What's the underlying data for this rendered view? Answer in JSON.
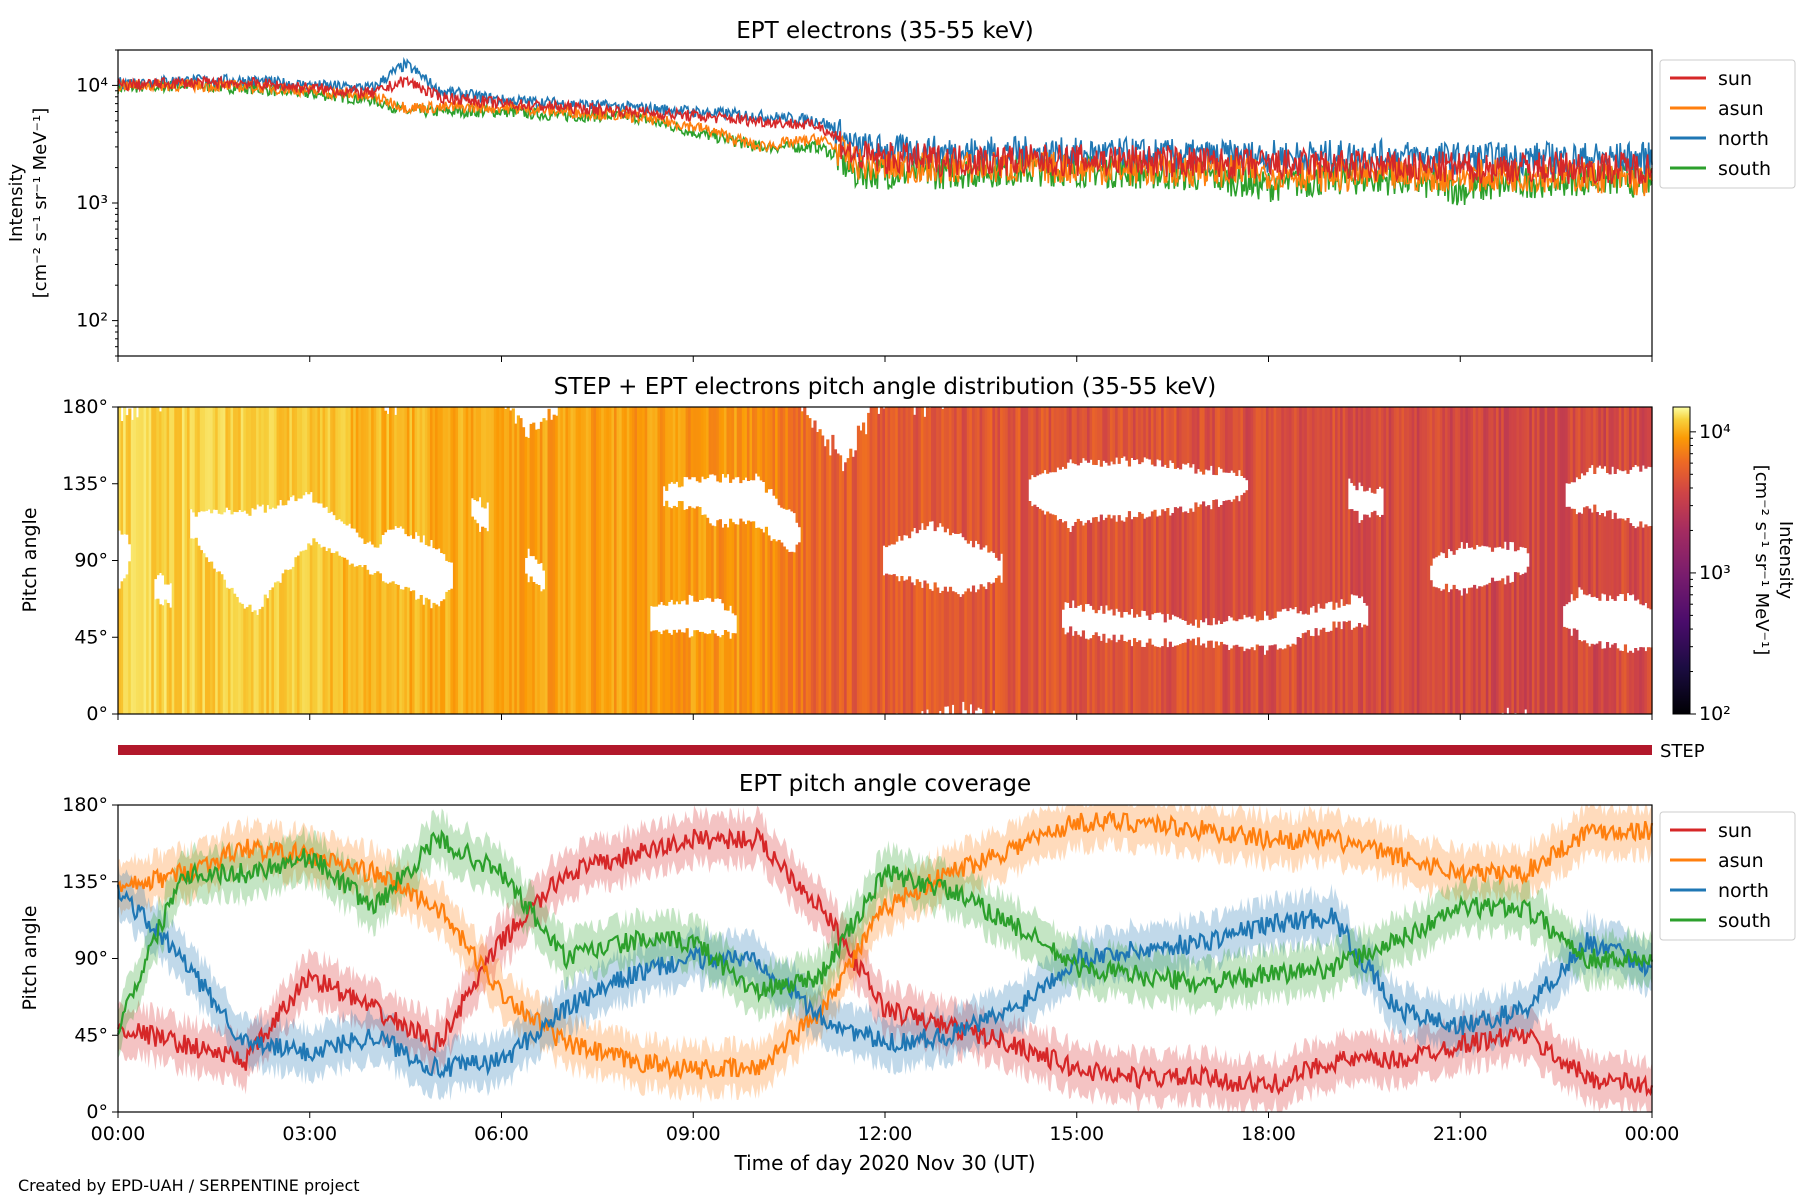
{
  "footer": {
    "credit": "Created by EPD-UAH / SERPENTINE project"
  },
  "colors": {
    "sun": "#d62728",
    "asun": "#ff7f0e",
    "north": "#1f77b4",
    "south": "#2ca02c",
    "step_bar": "#b2182b"
  },
  "chart_data": [
    {
      "type": "line",
      "title": "EPT electrons (35-55 keV)",
      "ylabel": "Intensity",
      "ylabel_unit": "[cm⁻² s⁻¹ sr⁻¹ MeV⁻¹]",
      "yscale": "log",
      "ylim": [
        50,
        20000
      ],
      "yticks": [
        "10²",
        "10³",
        "10⁴"
      ],
      "xlim": [
        "00:00",
        "24:00"
      ],
      "legend": {
        "placement": "outside-right",
        "entries": [
          "sun",
          "asun",
          "north",
          "south"
        ]
      },
      "x": [
        "00:00",
        "01:00",
        "02:00",
        "03:00",
        "04:00",
        "04:30",
        "05:00",
        "06:00",
        "07:00",
        "08:00",
        "09:00",
        "10:00",
        "11:00",
        "11:30",
        "12:00",
        "13:00",
        "14:00",
        "15:00",
        "16:00",
        "17:00",
        "18:00",
        "19:00",
        "20:00",
        "21:00",
        "22:00",
        "23:00",
        "24:00"
      ],
      "series": [
        {
          "name": "sun",
          "values": [
            10000,
            10500,
            10500,
            9500,
            8500,
            11000,
            8000,
            7000,
            6500,
            6000,
            5500,
            5000,
            4500,
            2500,
            2400,
            2300,
            2300,
            2300,
            2300,
            2200,
            2100,
            2100,
            2000,
            2000,
            2000,
            2000,
            2000
          ]
        },
        {
          "name": "asun",
          "values": [
            10000,
            10000,
            9800,
            9000,
            8000,
            6500,
            6500,
            6500,
            6000,
            5500,
            4500,
            3000,
            3500,
            2200,
            2000,
            2000,
            2000,
            2000,
            1900,
            1900,
            1800,
            1700,
            1700,
            1700,
            1700,
            1700,
            1500
          ]
        },
        {
          "name": "north",
          "values": [
            10500,
            11000,
            11000,
            10000,
            9500,
            15000,
            9000,
            7500,
            7000,
            6500,
            6000,
            5500,
            5000,
            3000,
            2800,
            2700,
            2700,
            2600,
            2600,
            2500,
            2500,
            2500,
            2500,
            2400,
            2400,
            2400,
            2400
          ]
        },
        {
          "name": "south",
          "values": [
            9500,
            10000,
            9500,
            8500,
            7500,
            6000,
            6000,
            6000,
            5500,
            5500,
            4000,
            3000,
            3000,
            1800,
            1800,
            1800,
            1900,
            1900,
            1800,
            1700,
            1400,
            1600,
            1600,
            1300,
            1500,
            1600,
            1500
          ]
        }
      ]
    },
    {
      "type": "heatmap",
      "title": "STEP + EPT electrons pitch angle distribution (35-55 keV)",
      "ylabel": "Pitch angle",
      "yticks": [
        "0°",
        "45°",
        "90°",
        "135°",
        "180°"
      ],
      "ylim": [
        0,
        180
      ],
      "xlim": [
        "00:00",
        "24:00"
      ],
      "colorbar": {
        "label": "Intensity",
        "unit": "[cm⁻² s⁻¹ sr⁻¹ MeV⁻¹]",
        "scale": "log",
        "range": [
          100,
          15000
        ],
        "ticks": [
          "10²",
          "10³",
          "10⁴"
        ],
        "colormap": "inferno"
      },
      "time_hours": [
        0,
        2,
        4,
        6,
        8,
        10,
        11,
        13,
        16,
        20,
        22,
        24
      ],
      "intensity": [
        9000,
        8500,
        6500,
        5500,
        5000,
        4500,
        2500,
        2200,
        2000,
        1800,
        1700,
        1800
      ]
    },
    {
      "type": "bar",
      "label": "STEP",
      "coverage": [
        "00:00",
        "24:00"
      ]
    },
    {
      "type": "line",
      "title": "EPT pitch angle coverage",
      "ylabel": "Pitch angle",
      "xlabel": "Time of day 2020 Nov 30 (UT)",
      "yticks": [
        "0°",
        "45°",
        "90°",
        "135°",
        "180°"
      ],
      "ylim": [
        0,
        180
      ],
      "xlim": [
        "00:00",
        "24:00"
      ],
      "xticks": [
        "00:00",
        "03:00",
        "06:00",
        "09:00",
        "12:00",
        "15:00",
        "18:00",
        "21:00",
        "00:00"
      ],
      "legend": {
        "placement": "outside-right",
        "entries": [
          "sun",
          "asun",
          "north",
          "south"
        ]
      },
      "x": [
        "00:00",
        "01:00",
        "02:00",
        "03:00",
        "04:00",
        "05:00",
        "06:00",
        "07:00",
        "08:00",
        "09:00",
        "10:00",
        "11:00",
        "12:00",
        "13:00",
        "14:00",
        "15:00",
        "16:00",
        "17:00",
        "18:00",
        "19:00",
        "20:00",
        "21:00",
        "22:00",
        "23:00",
        "24:00"
      ],
      "series": [
        {
          "name": "sun",
          "values": [
            50,
            40,
            30,
            80,
            60,
            40,
            100,
            140,
            150,
            160,
            160,
            120,
            60,
            50,
            40,
            25,
            20,
            20,
            15,
            30,
            30,
            40,
            45,
            20,
            15
          ]
        },
        {
          "name": "asun",
          "values": [
            130,
            140,
            155,
            150,
            140,
            120,
            70,
            40,
            30,
            25,
            25,
            60,
            120,
            140,
            155,
            170,
            170,
            165,
            160,
            160,
            150,
            140,
            140,
            165,
            165
          ]
        },
        {
          "name": "north",
          "values": [
            130,
            90,
            40,
            35,
            45,
            25,
            30,
            60,
            80,
            90,
            90,
            55,
            40,
            45,
            60,
            90,
            95,
            100,
            110,
            115,
            60,
            50,
            60,
            100,
            85
          ]
        },
        {
          "name": "south",
          "values": [
            50,
            140,
            140,
            150,
            120,
            160,
            140,
            90,
            100,
            100,
            70,
            80,
            140,
            130,
            110,
            85,
            80,
            75,
            80,
            85,
            100,
            120,
            120,
            90,
            90
          ]
        }
      ]
    }
  ]
}
